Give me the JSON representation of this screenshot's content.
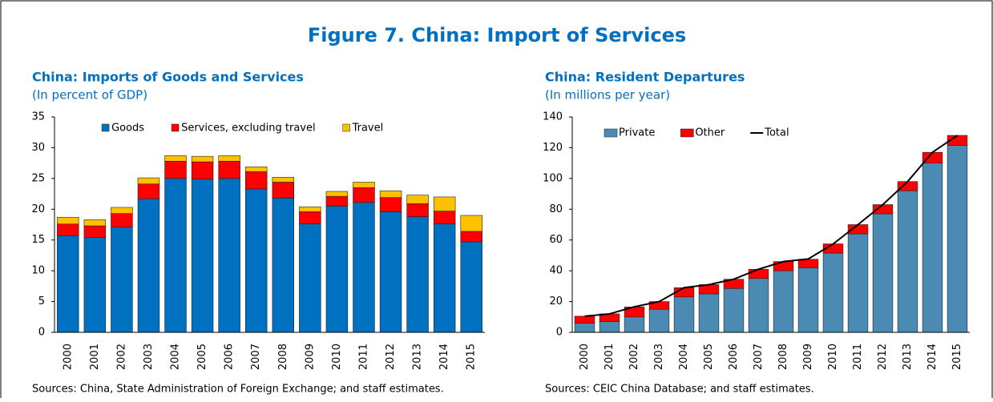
{
  "title": "Figure 7. China: Import of Services",
  "chart_data": [
    {
      "type": "bar",
      "stacked": true,
      "title": "China: Imports of Goods and Services",
      "subtitle": "(In percent of GDP)",
      "note": "Sources: China, State Administration of Foreign Exchange; and staff estimates.",
      "categories": [
        "2000",
        "2001",
        "2002",
        "2003",
        "2004",
        "2005",
        "2006",
        "2007",
        "2008",
        "2009",
        "2010",
        "2011",
        "2012",
        "2013",
        "2014",
        "2015"
      ],
      "series": [
        {
          "name": "Goods",
          "color": "#0070c0",
          "values": [
            15.7,
            15.4,
            17.1,
            21.7,
            25.0,
            24.9,
            25.0,
            23.3,
            21.8,
            17.6,
            20.5,
            21.1,
            19.6,
            18.8,
            17.6,
            14.7
          ]
        },
        {
          "name": "Services, excluding travel",
          "color": "#ff0000",
          "values": [
            1.9,
            1.9,
            2.2,
            2.4,
            2.8,
            2.8,
            2.8,
            2.8,
            2.6,
            2.0,
            1.6,
            2.4,
            2.3,
            2.1,
            2.1,
            1.7
          ]
        },
        {
          "name": "Travel",
          "color": "#ffc000",
          "values": [
            1.1,
            1.0,
            1.0,
            1.0,
            0.9,
            0.9,
            0.9,
            0.8,
            0.8,
            0.8,
            0.8,
            0.9,
            1.1,
            1.4,
            2.3,
            2.6
          ]
        }
      ],
      "ylim": [
        0,
        35
      ],
      "yticks": [
        0,
        5,
        10,
        15,
        20,
        25,
        30,
        35
      ],
      "legend": "top"
    },
    {
      "type": "bar",
      "stacked": true,
      "title": "China: Resident Departures",
      "subtitle": "(In millions per year)",
      "note": "Sources: CEIC China Database; and staff estimates.",
      "categories": [
        "2000",
        "2001",
        "2002",
        "2003",
        "2004",
        "2005",
        "2006",
        "2007",
        "2008",
        "2009",
        "2010",
        "2011",
        "2012",
        "2013",
        "2014",
        "2015"
      ],
      "series": [
        {
          "name": "Private",
          "color": "#4a8ab3",
          "values": [
            6,
            7,
            10,
            15,
            23,
            25,
            28.5,
            35,
            40,
            42,
            51.5,
            64,
            77,
            92,
            110,
            121.5
          ]
        },
        {
          "name": "Other",
          "color": "#ff0000",
          "values": [
            4.5,
            5,
            6.5,
            5,
            6,
            6,
            6,
            6,
            6,
            5.5,
            6,
            6,
            6,
            6,
            7,
            6.5
          ]
        },
        {
          "name": "Total",
          "type": "line",
          "color": "#000000",
          "values": [
            10.5,
            12,
            16.6,
            20,
            29,
            31,
            34.5,
            41,
            46,
            47.7,
            57.4,
            70,
            83,
            98,
            117,
            128
          ]
        }
      ],
      "ylim": [
        0,
        140
      ],
      "yticks": [
        0,
        20,
        40,
        60,
        80,
        100,
        120,
        140
      ],
      "legend": "top-left"
    }
  ]
}
